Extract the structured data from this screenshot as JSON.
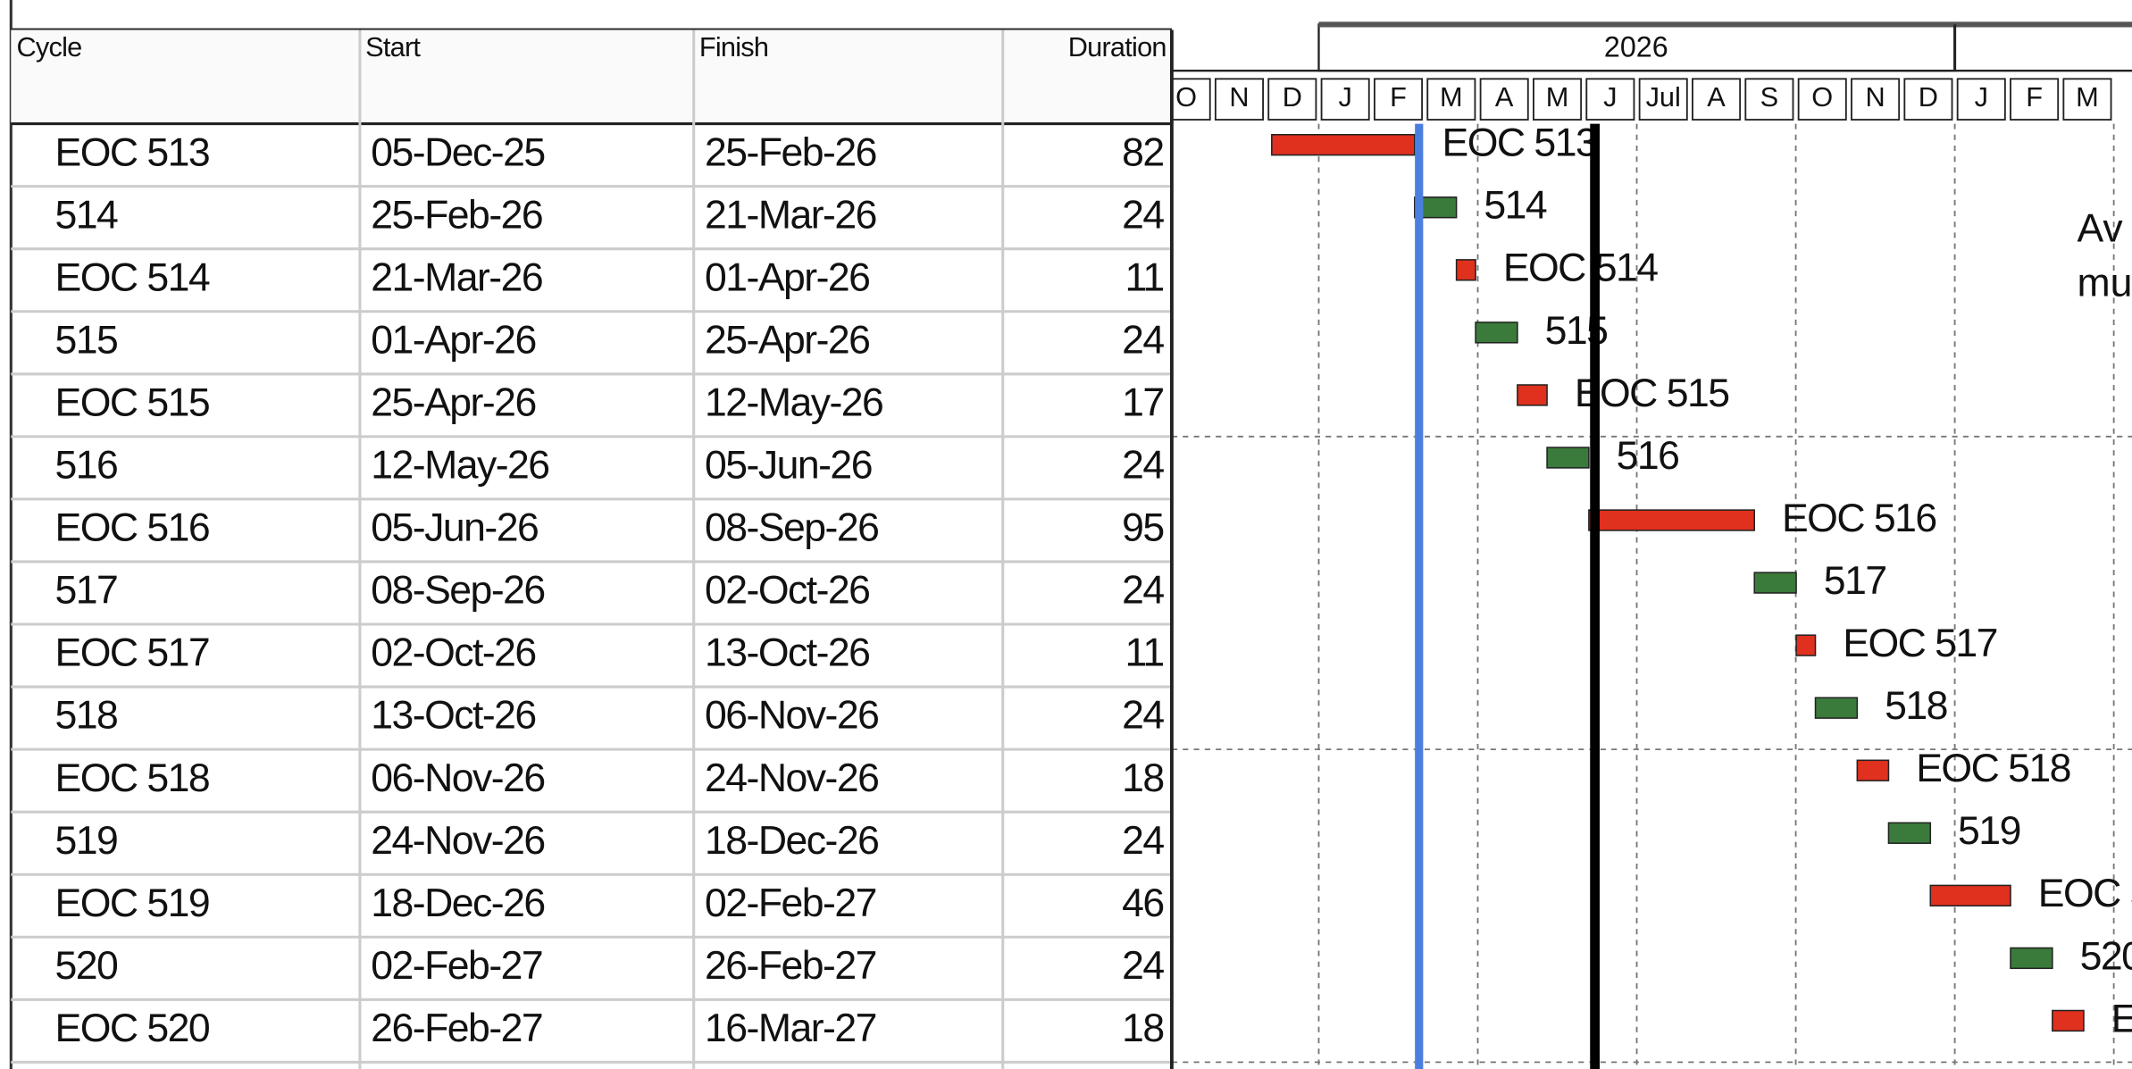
{
  "table": {
    "columns": [
      "Cycle",
      "Start",
      "Finish",
      "Duration"
    ],
    "rows": [
      [
        "EOC 513",
        "05-Dec-25",
        "25-Feb-26",
        "82"
      ],
      [
        "514",
        "25-Feb-26",
        "21-Mar-26",
        "24"
      ],
      [
        "EOC 514",
        "21-Mar-26",
        "01-Apr-26",
        "11"
      ],
      [
        "515",
        "01-Apr-26",
        "25-Apr-26",
        "24"
      ],
      [
        "EOC 515",
        "25-Apr-26",
        "12-May-26",
        "17"
      ],
      [
        "516",
        "12-May-26",
        "05-Jun-26",
        "24"
      ],
      [
        "EOC 516",
        "05-Jun-26",
        "08-Sep-26",
        "95"
      ],
      [
        "517",
        "08-Sep-26",
        "02-Oct-26",
        "24"
      ],
      [
        "EOC 517",
        "02-Oct-26",
        "13-Oct-26",
        "11"
      ],
      [
        "518",
        "13-Oct-26",
        "06-Nov-26",
        "24"
      ],
      [
        "EOC 518",
        "06-Nov-26",
        "24-Nov-26",
        "18"
      ],
      [
        "519",
        "24-Nov-26",
        "18-Dec-26",
        "24"
      ],
      [
        "EOC 519",
        "18-Dec-26",
        "02-Feb-27",
        "46"
      ],
      [
        "520",
        "02-Feb-27",
        "26-Feb-27",
        "24"
      ],
      [
        "EOC 520",
        "26-Feb-27",
        "16-Mar-27",
        "18"
      ]
    ]
  },
  "timeline": {
    "year": "2026",
    "months": [
      "O",
      "N",
      "D",
      "J",
      "F",
      "M",
      "A",
      "M",
      "J",
      "Jul",
      "A",
      "S",
      "O",
      "N",
      "D",
      "J",
      "F",
      "M"
    ]
  },
  "note": [
    "Av",
    "mu"
  ]
}
